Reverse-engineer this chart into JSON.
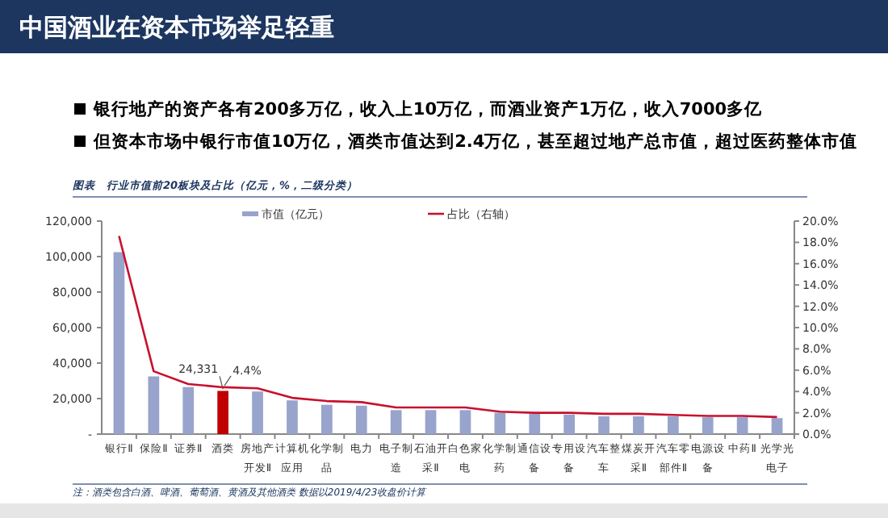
{
  "chart_data": {
    "type": "bar",
    "title": "中国酒业在资本市场举足轻重",
    "annotations": [
      "银行地产的资产各有200多万亿，收入上10万亿，而酒业资产1万亿，收入7000多亿",
      "但资本市场中银行市值10万亿，酒类市值达到2.4万亿，甚至超过地产总市值，超过医药整体市值",
      "图表　行业市值前20板块及占比（亿元，%，二级分类）",
      "注：酒类包含白酒、啤酒、葡萄酒、黄酒及其他酒类 数据以2019/4/23收盘价计算"
    ],
    "categories": [
      "银行Ⅱ",
      "保险Ⅱ",
      "证券Ⅱ",
      "酒类",
      "房地产开发Ⅱ",
      "计算机应用",
      "化学制品",
      "电力",
      "电子制造",
      "石油开采Ⅱ",
      "白色家电",
      "化学制药",
      "通信设备",
      "专用设备",
      "汽车整车",
      "煤炭开采Ⅱ",
      "汽车零部件Ⅱ",
      "电源设备",
      "中药Ⅱ",
      "光学光电子"
    ],
    "series": [
      {
        "name": "市值（亿元）",
        "colors": [
          "#98a4cc",
          "#98a4cc",
          "#98a4cc",
          "#c00000",
          "#98a4cc",
          "#98a4cc",
          "#98a4cc",
          "#98a4cc",
          "#98a4cc",
          "#98a4cc",
          "#98a4cc",
          "#98a4cc",
          "#98a4cc",
          "#98a4cc",
          "#98a4cc",
          "#98a4cc",
          "#98a4cc",
          "#98a4cc",
          "#98a4cc",
          "#98a4cc"
        ],
        "values": [
          102500,
          32500,
          26500,
          24331,
          24000,
          19000,
          16500,
          16000,
          13500,
          13500,
          13500,
          12000,
          11500,
          11000,
          10000,
          10000,
          10000,
          9500,
          9500,
          9000
        ],
        "value_labels": [
          null,
          null,
          null,
          "24,331",
          null,
          null,
          null,
          null,
          null,
          null,
          null,
          null,
          null,
          null,
          null,
          null,
          null,
          null,
          null,
          null
        ]
      },
      {
        "name": "占比（右轴）",
        "type": "line",
        "axis": "y2",
        "color": "#c8102e",
        "values": [
          18.6,
          5.9,
          4.7,
          4.4,
          4.3,
          3.4,
          3.1,
          3.0,
          2.5,
          2.5,
          2.5,
          2.1,
          2.0,
          2.0,
          1.9,
          1.9,
          1.8,
          1.7,
          1.7,
          1.6
        ],
        "value_labels": [
          null,
          null,
          null,
          "4.4%",
          null,
          null,
          null,
          null,
          null,
          null,
          null,
          null,
          null,
          null,
          null,
          null,
          null,
          null,
          null,
          null
        ]
      }
    ],
    "ylim": [
      0,
      120000
    ],
    "yticks": [
      {
        "value": 0,
        "label": "-"
      },
      {
        "value": 20000,
        "label": "20,000"
      },
      {
        "value": 40000,
        "label": "40,000"
      },
      {
        "value": 60000,
        "label": "60,000"
      },
      {
        "value": 80000,
        "label": "80,000"
      },
      {
        "value": 100000,
        "label": "100,000"
      },
      {
        "value": 120000,
        "label": "120,000"
      }
    ],
    "y2lim": [
      0,
      20
    ],
    "y2ticks": [
      {
        "value": 0,
        "label": "0.0%"
      },
      {
        "value": 2,
        "label": "2.0%"
      },
      {
        "value": 4,
        "label": "4.0%"
      },
      {
        "value": 6,
        "label": "6.0%"
      },
      {
        "value": 8,
        "label": "8.0%"
      },
      {
        "value": 10,
        "label": "10.0%"
      },
      {
        "value": 12,
        "label": "12.0%"
      },
      {
        "value": 14,
        "label": "14.0%"
      },
      {
        "value": 16,
        "label": "16.0%"
      },
      {
        "value": 18,
        "label": "18.0%"
      },
      {
        "value": 20,
        "label": "20.0%"
      }
    ],
    "legend": "top"
  }
}
